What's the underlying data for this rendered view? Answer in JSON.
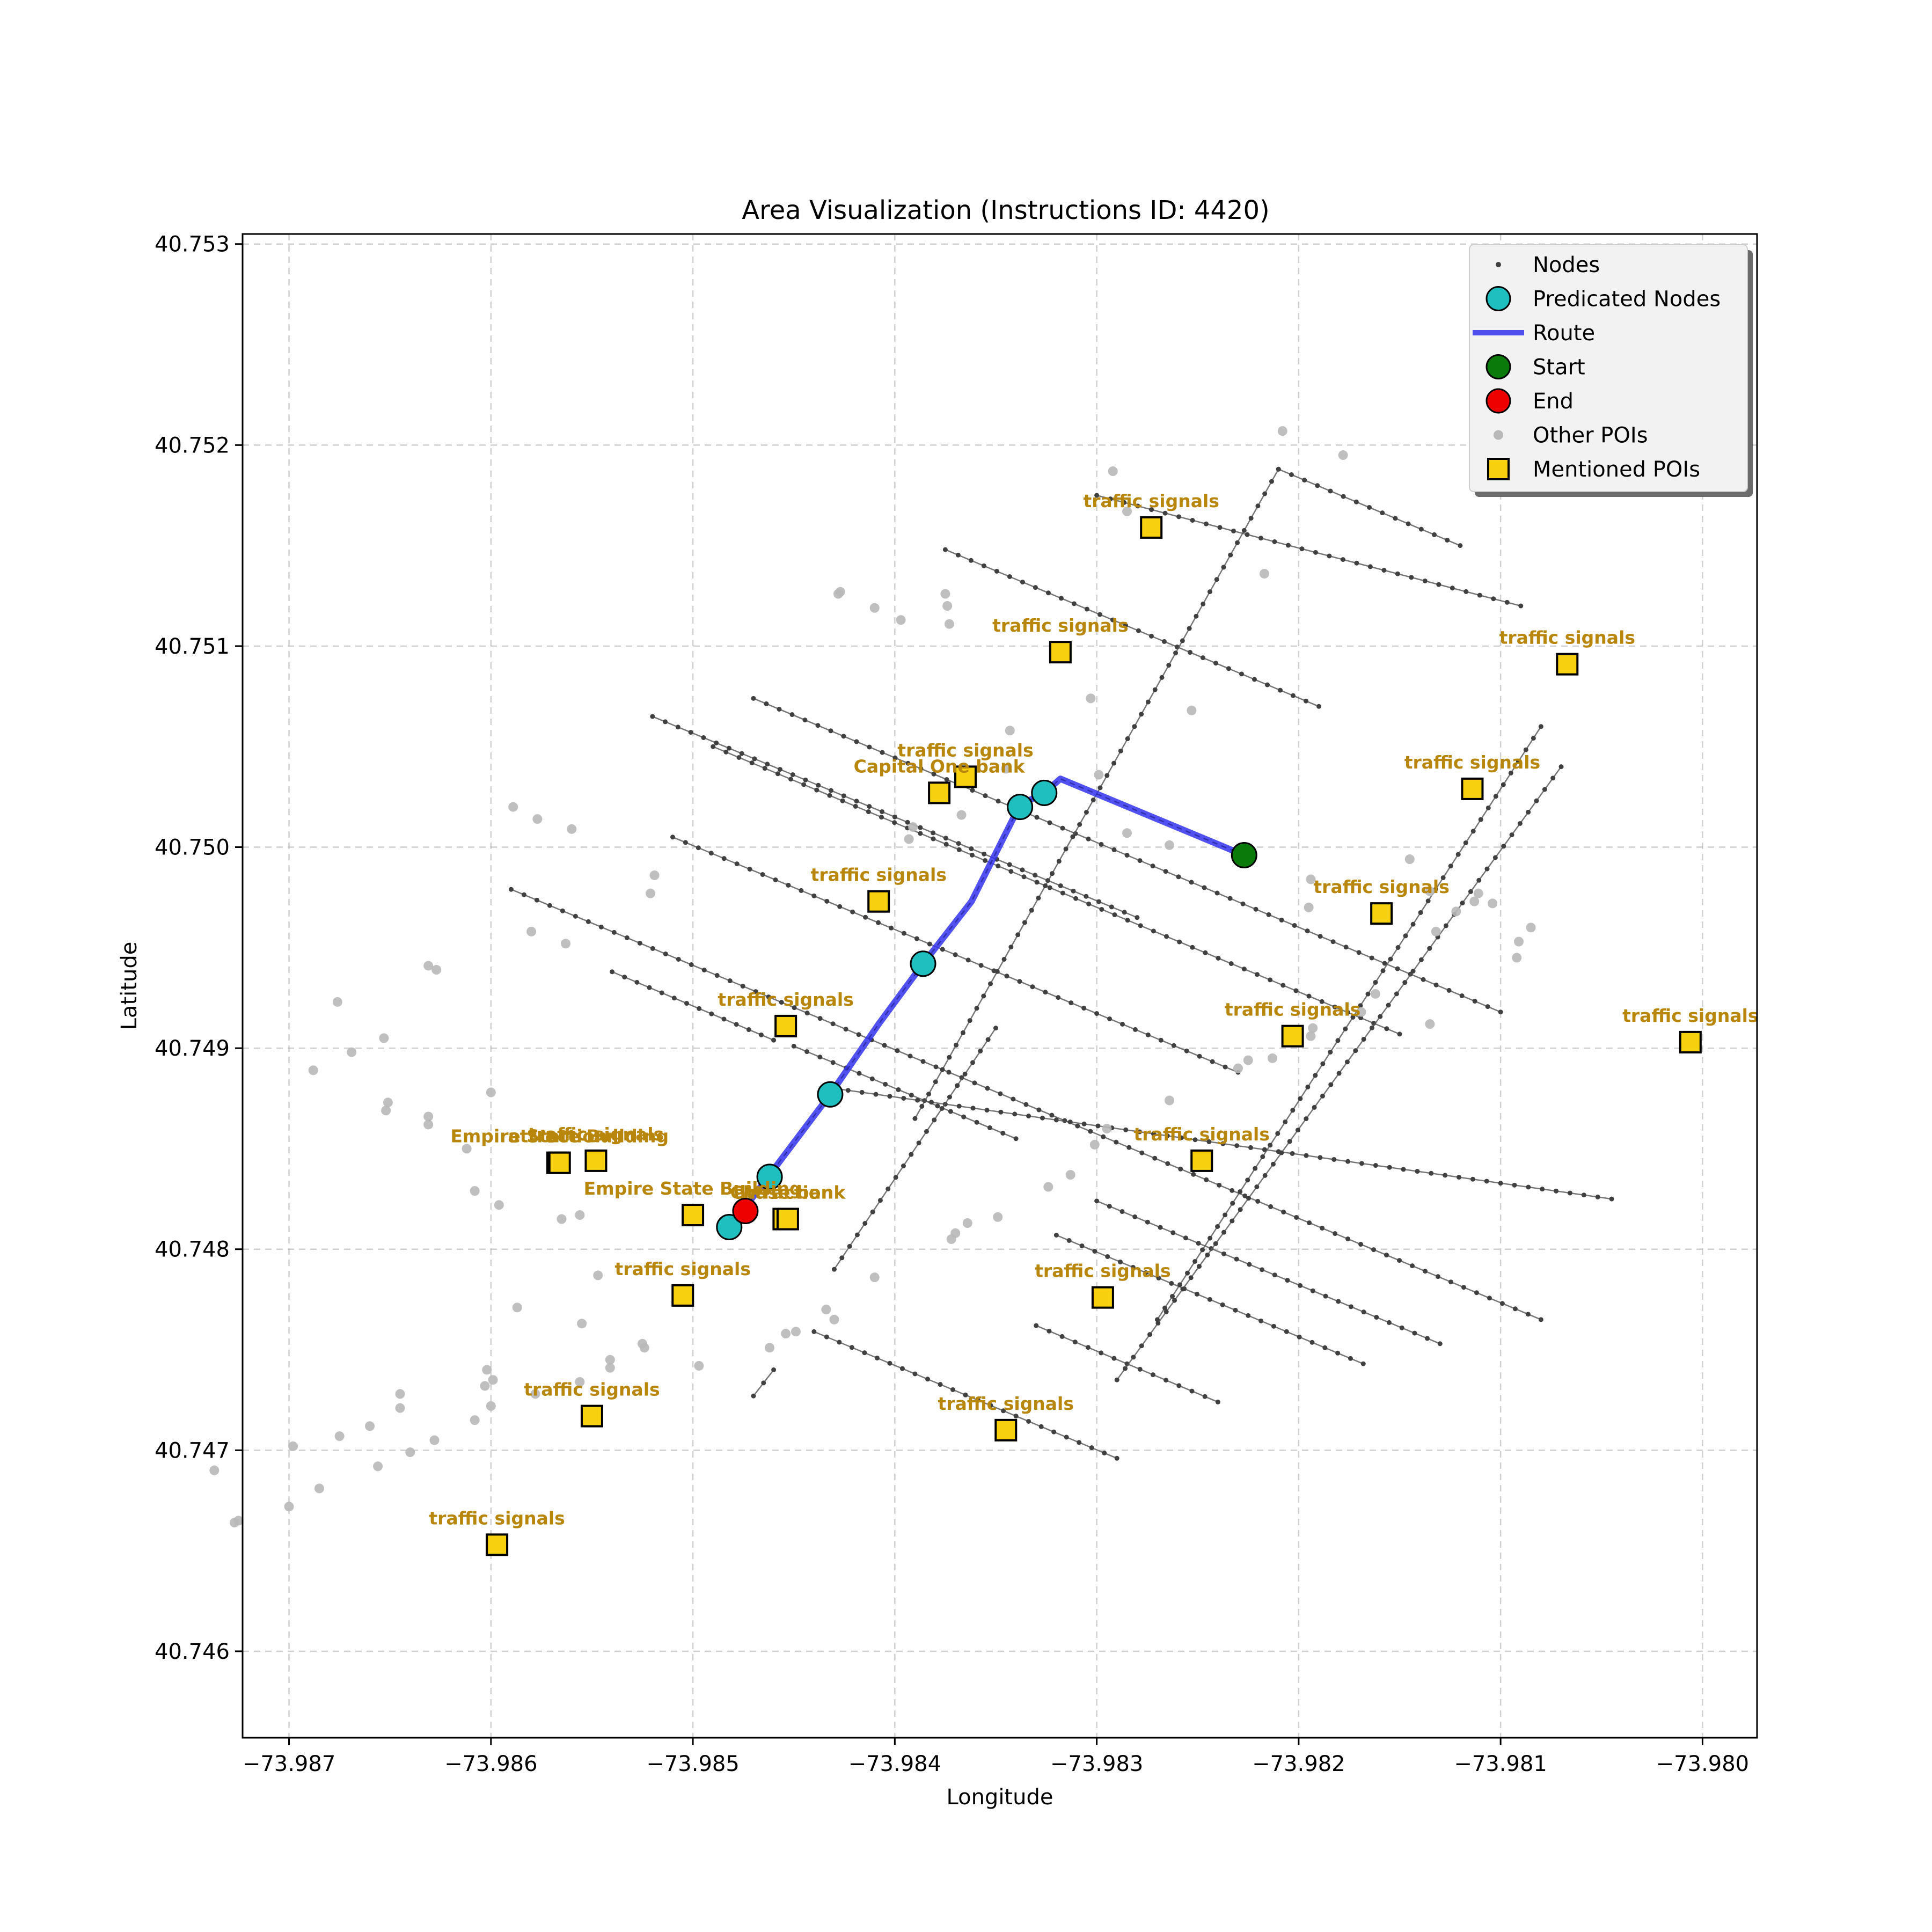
{
  "chart_data": {
    "type": "map",
    "title": "Area Visualization (Instructions ID: 4420)",
    "xlabel": "Longitude",
    "ylabel": "Latitude",
    "xlim": [
      -73.98723,
      -73.97973
    ],
    "ylim": [
      40.74557,
      40.75305
    ],
    "grid": true,
    "legend_position": "top-right",
    "x_ticks": [
      {
        "value": -73.987,
        "label": "−73.987"
      },
      {
        "value": -73.986,
        "label": "−73.986"
      },
      {
        "value": -73.985,
        "label": "−73.985"
      },
      {
        "value": -73.984,
        "label": "−73.984"
      },
      {
        "value": -73.983,
        "label": "−73.983"
      },
      {
        "value": -73.982,
        "label": "−73.982"
      },
      {
        "value": -73.981,
        "label": "−73.981"
      },
      {
        "value": -73.98,
        "label": "−73.980"
      }
    ],
    "y_ticks": [
      {
        "value": 40.746,
        "label": "40.746"
      },
      {
        "value": 40.747,
        "label": "40.747"
      },
      {
        "value": 40.748,
        "label": "40.748"
      },
      {
        "value": 40.749,
        "label": "40.749"
      },
      {
        "value": 40.75,
        "label": "40.750"
      },
      {
        "value": 40.751,
        "label": "40.751"
      },
      {
        "value": 40.752,
        "label": "40.752"
      },
      {
        "value": 40.753,
        "label": "40.753"
      }
    ],
    "legend": [
      {
        "key": "nodes",
        "label": "Nodes"
      },
      {
        "key": "predicated",
        "label": "Predicated Nodes"
      },
      {
        "key": "route",
        "label": "Route"
      },
      {
        "key": "start",
        "label": "Start"
      },
      {
        "key": "end",
        "label": "End"
      },
      {
        "key": "other_pois",
        "label": "Other POIs"
      },
      {
        "key": "mentioned_pois",
        "label": "Mentioned POIs"
      }
    ],
    "colors": {
      "nodes": "#404040",
      "predicated": "#1fbfbf",
      "route": "#3333ee",
      "start": "#0a7a0a",
      "end": "#ee0000",
      "other_pois": "#b8b8b8",
      "mentioned_pois": "#f7d10f",
      "poi_label": "#b8860b"
    },
    "streets": [
      {
        "from": [
          -73.98375,
          40.75148
        ],
        "to": [
          -73.9819,
          40.7507
        ]
      },
      {
        "from": [
          -73.9847,
          40.75074
        ],
        "to": [
          -73.981,
          40.74918
        ]
      },
      {
        "from": [
          -73.9852,
          40.75065
        ],
        "to": [
          -73.9828,
          40.74965
        ]
      },
      {
        "from": [
          -73.9849,
          40.7505
        ],
        "to": [
          -73.9815,
          40.74907
        ]
      },
      {
        "from": [
          -73.9851,
          40.75005
        ],
        "to": [
          -73.9823,
          40.74888
        ]
      },
      {
        "from": [
          -73.9859,
          40.74979
        ],
        "to": [
          -73.9808,
          40.74765
        ]
      },
      {
        "from": [
          -73.9854,
          40.74938
        ],
        "to": [
          -73.9846,
          40.74904
        ]
      },
      {
        "from": [
          -73.9845,
          40.74901
        ],
        "to": [
          -73.9834,
          40.74855
        ]
      },
      {
        "from": [
          -73.9843,
          40.7488
        ],
        "to": [
          -73.98045,
          40.74825
        ]
      },
      {
        "from": [
          -73.983,
          40.74824
        ],
        "to": [
          -73.9813,
          40.74753
        ]
      },
      {
        "from": [
          -73.9832,
          40.74807
        ],
        "to": [
          -73.98168,
          40.74743
        ]
      },
      {
        "from": [
          -73.9844,
          40.74759
        ],
        "to": [
          -73.9829,
          40.74696
        ]
      },
      {
        "from": [
          -73.9833,
          40.74762
        ],
        "to": [
          -73.9824,
          40.74724
        ]
      },
      {
        "from": [
          -73.983,
          40.75175
        ],
        "to": [
          -73.9809,
          40.7512
        ]
      },
      {
        "from": [
          -73.9821,
          40.75188
        ],
        "to": [
          -73.9812,
          40.7515
        ]
      },
      {
        "from": [
          -73.9821,
          40.75188
        ],
        "to": [
          -73.9839,
          40.74865
        ]
      },
      {
        "from": [
          -73.9807,
          40.7504
        ],
        "to": [
          -73.9829,
          40.74735
        ]
      },
      {
        "from": [
          -73.9808,
          40.7506
        ],
        "to": [
          -73.9827,
          40.74765
        ]
      },
      {
        "from": [
          -73.9835,
          40.7491
        ],
        "to": [
          -73.9843,
          40.7479
        ]
      },
      {
        "from": [
          -73.9846,
          40.7474
        ],
        "to": [
          -73.9847,
          40.74727
        ]
      }
    ],
    "route": [
      [
        -73.98227,
        40.74996
      ],
      [
        -73.98318,
        40.75034
      ],
      [
        -73.98326,
        40.75027
      ],
      [
        -73.98338,
        40.75021
      ],
      [
        -73.98362,
        40.74973
      ],
      [
        -73.98386,
        40.74942
      ],
      [
        -73.98408,
        40.74912
      ],
      [
        -73.98432,
        40.74877
      ],
      [
        -73.98462,
        40.74837
      ],
      [
        -73.98477,
        40.74817
      ],
      [
        -73.9848,
        40.74811
      ]
    ],
    "predicated_nodes": [
      [
        -73.98326,
        40.75027
      ],
      [
        -73.98338,
        40.7502
      ],
      [
        -73.98386,
        40.74942
      ],
      [
        -73.98432,
        40.74877
      ],
      [
        -73.98462,
        40.74836
      ],
      [
        -73.98482,
        40.74811
      ]
    ],
    "start": [
      -73.98227,
      40.74996
    ],
    "end": [
      -73.98474,
      40.74819
    ],
    "mentioned_pois": [
      {
        "lon": -73.98273,
        "lat": 40.75159,
        "label": "traffic signals"
      },
      {
        "lon": -73.98318,
        "lat": 40.75097,
        "label": "traffic signals"
      },
      {
        "lon": -73.98067,
        "lat": 40.75091,
        "label": "traffic signals"
      },
      {
        "lon": -73.98365,
        "lat": 40.75035,
        "label": "traffic signals"
      },
      {
        "lon": -73.98378,
        "lat": 40.75027,
        "label": "Capital One bank"
      },
      {
        "lon": -73.98114,
        "lat": 40.75029,
        "label": "traffic signals"
      },
      {
        "lon": -73.98408,
        "lat": 40.74973,
        "label": "traffic signals"
      },
      {
        "lon": -73.98159,
        "lat": 40.74967,
        "label": "traffic signals"
      },
      {
        "lon": -73.98454,
        "lat": 40.74911,
        "label": "traffic signals"
      },
      {
        "lon": -73.98203,
        "lat": 40.74906,
        "label": "traffic signals"
      },
      {
        "lon": -73.98006,
        "lat": 40.74903,
        "label": "traffic signals"
      },
      {
        "lon": -73.98548,
        "lat": 40.74844,
        "label": "traffic signals"
      },
      {
        "lon": -73.98567,
        "lat": 40.74843,
        "label": "attraction"
      },
      {
        "lon": -73.98566,
        "lat": 40.74843,
        "label": "Empire State Building"
      },
      {
        "lon": -73.98248,
        "lat": 40.74844,
        "label": "traffic signals"
      },
      {
        "lon": -73.985,
        "lat": 40.74817,
        "label": "Empire State Building"
      },
      {
        "lon": -73.98455,
        "lat": 40.74815,
        "label": "attraction"
      },
      {
        "lon": -73.98453,
        "lat": 40.74815,
        "label": "Chase bank"
      },
      {
        "lon": -73.98505,
        "lat": 40.74777,
        "label": "traffic signals"
      },
      {
        "lon": -73.98297,
        "lat": 40.74776,
        "label": "traffic signals"
      },
      {
        "lon": -73.9855,
        "lat": 40.74717,
        "label": "traffic signals"
      },
      {
        "lon": -73.98345,
        "lat": 40.7471,
        "label": "traffic signals"
      },
      {
        "lon": -73.98597,
        "lat": 40.74653,
        "label": "traffic signals"
      }
    ],
    "other_pois": [
      [
        -73.98208,
        40.75207
      ],
      [
        -73.98178,
        40.75195
      ],
      [
        -73.98292,
        40.75187
      ],
      [
        -73.98285,
        40.75167
      ],
      [
        -73.98217,
        40.75136
      ],
      [
        -73.98427,
        40.75127
      ],
      [
        -73.98428,
        40.75126
      ],
      [
        -73.9841,
        40.75119
      ],
      [
        -73.98397,
        40.75113
      ],
      [
        -73.98375,
        40.75126
      ],
      [
        -73.98374,
        40.7512
      ],
      [
        -73.98373,
        40.75111
      ],
      [
        -73.98303,
        40.75074
      ],
      [
        -73.98253,
        40.75068
      ],
      [
        -73.98343,
        40.75058
      ],
      [
        -73.98345,
        40.75039
      ],
      [
        -73.98299,
        40.75036
      ],
      [
        -73.98367,
        40.75016
      ],
      [
        -73.98391,
        40.7501
      ],
      [
        -73.98393,
        40.75004
      ],
      [
        -73.98285,
        40.75007
      ],
      [
        -73.98264,
        40.75001
      ],
      [
        -73.98194,
        40.74984
      ],
      [
        -73.98195,
        40.7497
      ],
      [
        -73.98145,
        40.74994
      ],
      [
        -73.98135,
        40.74978
      ],
      [
        -73.98132,
        40.74958
      ],
      [
        -73.98122,
        40.74968
      ],
      [
        -73.98111,
        40.74977
      ],
      [
        -73.98113,
        40.74973
      ],
      [
        -73.98104,
        40.74972
      ],
      [
        -73.98085,
        40.7496
      ],
      [
        -73.98091,
        40.74953
      ],
      [
        -73.98092,
        40.74945
      ],
      [
        -73.98135,
        40.74912
      ],
      [
        -73.98162,
        40.74927
      ],
      [
        -73.98169,
        40.74918
      ],
      [
        -73.98193,
        40.7491
      ],
      [
        -73.98194,
        40.74906
      ],
      [
        -73.98213,
        40.74895
      ],
      [
        -73.9823,
        40.7489
      ],
      [
        -73.98225,
        40.74894
      ],
      [
        -73.98264,
        40.74874
      ],
      [
        -73.98295,
        40.7486
      ],
      [
        -73.98301,
        40.74852
      ],
      [
        -73.98313,
        40.74837
      ],
      [
        -73.98324,
        40.74831
      ],
      [
        -73.98349,
        40.74816
      ],
      [
        -73.98364,
        40.74813
      ],
      [
        -73.98372,
        40.74805
      ],
      [
        -73.9837,
        40.74808
      ],
      [
        -73.9841,
        40.74786
      ],
      [
        -73.98434,
        40.7477
      ],
      [
        -73.98449,
        40.74759
      ],
      [
        -73.9843,
        40.74765
      ],
      [
        -73.98454,
        40.74758
      ],
      [
        -73.98462,
        40.74751
      ],
      [
        -73.98497,
        40.74742
      ],
      [
        -73.98541,
        40.74741
      ],
      [
        -73.98556,
        40.74734
      ],
      [
        -73.98578,
        40.74728
      ],
      [
        -73.98608,
        40.74715
      ],
      [
        -73.986,
        40.74722
      ],
      [
        -73.98628,
        40.74705
      ],
      [
        -73.9864,
        40.74699
      ],
      [
        -73.98656,
        40.74692
      ],
      [
        -73.98685,
        40.74681
      ],
      [
        -73.987,
        40.74672
      ],
      [
        -73.98725,
        40.74665
      ],
      [
        -73.98727,
        40.74664
      ],
      [
        -73.98589,
        40.7502
      ],
      [
        -73.98577,
        40.75014
      ],
      [
        -73.9856,
        40.75009
      ],
      [
        -73.98519,
        40.74986
      ],
      [
        -73.98521,
        40.74977
      ],
      [
        -73.9858,
        40.74958
      ],
      [
        -73.98563,
        40.74952
      ],
      [
        -73.98631,
        40.74941
      ],
      [
        -73.98627,
        40.74939
      ],
      [
        -73.98676,
        40.74923
      ],
      [
        -73.98653,
        40.74905
      ],
      [
        -73.98669,
        40.74898
      ],
      [
        -73.98688,
        40.74889
      ],
      [
        -73.98651,
        40.74873
      ],
      [
        -73.98652,
        40.74869
      ],
      [
        -73.98631,
        40.74866
      ],
      [
        -73.98631,
        40.74862
      ],
      [
        -73.986,
        40.74878
      ],
      [
        -73.98612,
        40.7485
      ],
      [
        -73.98608,
        40.74829
      ],
      [
        -73.98556,
        40.74817
      ],
      [
        -73.98565,
        40.74815
      ],
      [
        -73.98596,
        40.74822
      ],
      [
        -73.98547,
        40.74787
      ],
      [
        -73.98587,
        40.74771
      ],
      [
        -73.98555,
        40.74763
      ],
      [
        -73.98525,
        40.74753
      ],
      [
        -73.98524,
        40.74751
      ],
      [
        -73.98541,
        40.74745
      ],
      [
        -73.98602,
        40.7474
      ],
      [
        -73.98599,
        40.74735
      ],
      [
        -73.98603,
        40.74732
      ],
      [
        -73.98645,
        40.74728
      ],
      [
        -73.98645,
        40.74721
      ],
      [
        -73.9866,
        40.74712
      ],
      [
        -73.98675,
        40.74707
      ],
      [
        -73.98698,
        40.74702
      ],
      [
        -73.98737,
        40.7469
      ]
    ]
  }
}
